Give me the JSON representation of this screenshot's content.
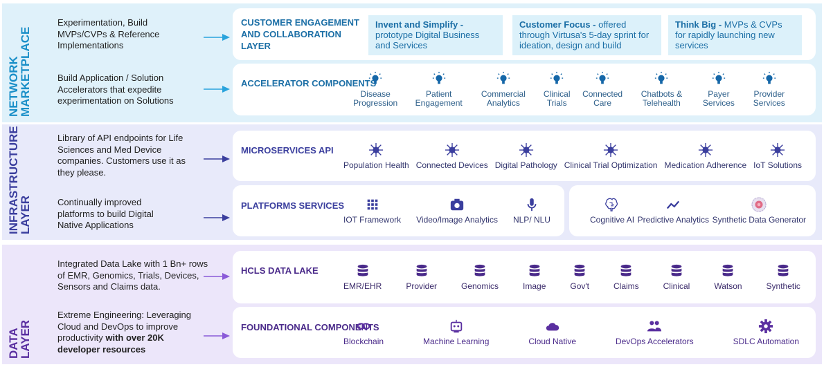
{
  "colors": {
    "marketplace": "#1a8fc8",
    "infrastructure": "#3b3f9e",
    "data": "#5a2fa0"
  },
  "marketplace": {
    "title_line1": "NETWORK",
    "title_line2": "MARKETPLACE",
    "desc1": "Experimentation, Build MVPs/CVPs & Reference Implementations",
    "desc2": "Build Application / Solution Accelerators that expedite experimentation on Solutions",
    "engagement": {
      "label": "CUSTOMER ENGAGEMENT AND COLLABORATION LAYER",
      "boxes": [
        {
          "bold": "Invent and Simplify -",
          "text": " prototype Digital Business and Services"
        },
        {
          "bold": "Customer Focus -",
          "text": " offered through Virtusa's 5-day sprint for ideation, design and build"
        },
        {
          "bold": "Think Big -",
          "text": " MVPs & CVPs for rapidly launching new services"
        }
      ]
    },
    "accelerator": {
      "label": "ACCELERATOR COMPONENTS",
      "icon": "lightbulb-icon",
      "items": [
        "Disease Progression",
        "Patient Engagement",
        "Commercial Analytics",
        "Clinical Trials",
        "Connected Care",
        "Chatbots & Telehealth",
        "Payer Services",
        "Provider Services"
      ]
    }
  },
  "infrastructure": {
    "title_line1": "INFRASTRUCTURE",
    "title_line2": "LAYER",
    "desc1": "Library of  API endpoints for Life Sciences and Med Device companies.  Customers use it as they please.",
    "desc2": "Continually improved platforms to build Digital Native Applications",
    "microservices": {
      "label": "MICROSERVICES API",
      "icon": "virus-node-icon",
      "items": [
        "Population Health",
        "Connected Devices",
        "Digital Pathology",
        "Clinical Trial Optimization",
        "Medication Adherence",
        "IoT Solutions"
      ]
    },
    "platforms": {
      "label": "PLATFORMS SERVICES",
      "items": [
        {
          "label": "IOT Framework",
          "icon": "grid-icon"
        },
        {
          "label": "Video/Image Analytics",
          "icon": "camera-icon"
        },
        {
          "label": "NLP/ NLU",
          "icon": "microphone-icon"
        }
      ],
      "items2": [
        {
          "label": "Cognitive AI",
          "icon": "brain-icon"
        },
        {
          "label": "Predictive Analytics",
          "icon": "trend-line-icon"
        },
        {
          "label": "Synthetic Data Generator",
          "icon": "synthetic-data-icon"
        }
      ]
    }
  },
  "data": {
    "title_line1": "DATA",
    "title_line2": "LAYER",
    "desc1": "Integrated Data Lake with 1 Bn+ rows of EMR, Genomics, Trials, Devices, Sensors and Claims data.",
    "desc2_plain": "Extreme Engineering: Leveraging Cloud and DevOps to improve productivity ",
    "desc2_bold": "with over 20K developer resources",
    "datalake": {
      "label": "HCLS DATA LAKE",
      "icon": "database-icon",
      "items": [
        "EMR/EHR",
        "Provider",
        "Genomics",
        "Image",
        "Gov't",
        "Claims",
        "Clinical",
        "Watson",
        "Synthetic"
      ]
    },
    "foundational": {
      "label": "FOUNDATIONAL COMPONENTS",
      "items": [
        {
          "label": "Blockchain",
          "icon": "link-icon"
        },
        {
          "label": "Machine Learning",
          "icon": "robot-icon"
        },
        {
          "label": "Cloud Native",
          "icon": "cloud-icon"
        },
        {
          "label": "DevOps Accelerators",
          "icon": "people-icon"
        },
        {
          "label": "SDLC Automation",
          "icon": "gear-icon"
        }
      ]
    }
  }
}
